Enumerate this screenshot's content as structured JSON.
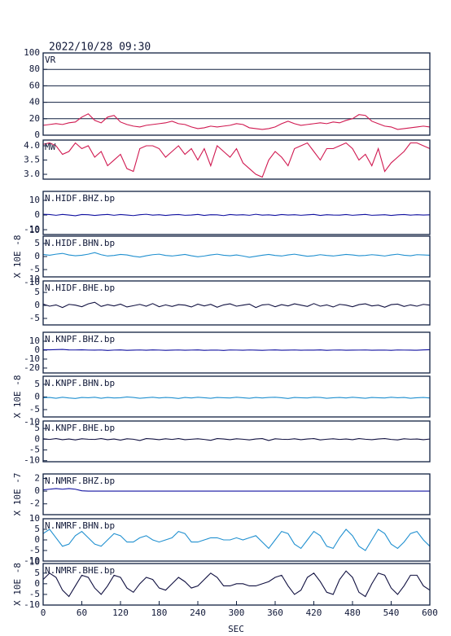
{
  "chart_data": {
    "type": "line",
    "title": "2022/10/28 09:30",
    "xlabel": "SEC",
    "xlim": [
      0,
      600
    ],
    "xticks": [
      0,
      60,
      120,
      180,
      240,
      300,
      360,
      420,
      480,
      540,
      600
    ],
    "x": [
      0,
      10,
      20,
      30,
      40,
      50,
      60,
      70,
      80,
      90,
      100,
      110,
      120,
      130,
      140,
      150,
      160,
      170,
      180,
      190,
      200,
      210,
      220,
      230,
      240,
      250,
      260,
      270,
      280,
      290,
      300,
      310,
      320,
      330,
      340,
      350,
      360,
      370,
      380,
      390,
      400,
      410,
      420,
      430,
      440,
      450,
      460,
      470,
      480,
      490,
      500,
      510,
      520,
      530,
      540,
      550,
      560,
      570,
      580,
      590,
      600
    ],
    "series": [
      {
        "name": "VR",
        "color": "#d01850",
        "grid": true,
        "ylim": [
          0,
          100
        ],
        "yticks": [
          0,
          20,
          40,
          60,
          80,
          100
        ],
        "values": [
          12,
          13,
          14,
          13,
          15,
          16,
          22,
          26,
          18,
          15,
          22,
          24,
          16,
          13,
          11,
          10,
          12,
          13,
          14,
          15,
          17,
          14,
          13,
          10,
          8,
          9,
          11,
          10,
          11,
          12,
          14,
          13,
          9,
          8,
          7,
          8,
          10,
          14,
          17,
          14,
          12,
          13,
          14,
          15,
          14,
          16,
          15,
          18,
          20,
          25,
          24,
          17,
          14,
          11,
          10,
          7,
          8,
          9,
          10,
          11,
          10
        ]
      },
      {
        "name": "MW",
        "color": "#d01850",
        "ylim": [
          2.83,
          4.2
        ],
        "yticks": [
          {
            "value": 3,
            "label": "3.0"
          },
          3.5,
          {
            "value": 4,
            "label": "4.0"
          }
        ],
        "values": [
          4.05,
          4.1,
          4.0,
          3.7,
          3.8,
          4.1,
          3.9,
          4.0,
          3.6,
          3.8,
          3.3,
          3.5,
          3.7,
          3.2,
          3.1,
          3.9,
          4.0,
          4.0,
          3.9,
          3.6,
          3.8,
          4.0,
          3.7,
          3.9,
          3.5,
          3.9,
          3.3,
          4.0,
          3.8,
          3.6,
          3.9,
          3.4,
          3.2,
          3.0,
          2.9,
          3.5,
          3.8,
          3.6,
          3.3,
          3.9,
          4.0,
          4.1,
          3.8,
          3.5,
          3.9,
          3.9,
          4.0,
          4.1,
          3.9,
          3.5,
          3.7,
          3.3,
          3.9,
          3.1,
          3.4,
          3.6,
          3.8,
          4.1,
          4.1,
          4.0,
          3.9
        ]
      },
      {
        "name": "N.HIDF.BHZ.bp",
        "color": "#1010a0",
        "ylim": [
          -13.3,
          16.1
        ],
        "yticks": [
          -10,
          0,
          10
        ],
        "values": [
          0.5,
          0.3,
          -0.2,
          0.4,
          0,
          -0.5,
          0.3,
          0.2,
          -0.3,
          0.1,
          0.4,
          -0.2,
          0.3,
          0,
          -0.4,
          0.2,
          0.5,
          -0.1,
          0.2,
          -0.3,
          0.1,
          0.3,
          -0.2,
          0,
          0.4,
          -0.3,
          0.2,
          0.1,
          -0.4,
          0.3,
          0,
          0.2,
          -0.2,
          0.5,
          -0.1,
          0.1,
          -0.3,
          0.3,
          0,
          0.2,
          -0.2,
          0.1,
          0.4,
          -0.3,
          0.2,
          0,
          -0.1,
          0.3,
          -0.2,
          0.1,
          0.4,
          -0.2,
          0,
          0.2,
          -0.3,
          0.1,
          0.3,
          -0.1,
          0.2,
          0,
          0.1
        ]
      },
      {
        "name": "N.HIDF.BHN.bp",
        "color": "#2090d0",
        "ylabel": "X 10E -8",
        "ylim": [
          -7.8,
          7.8
        ],
        "yticks": [
          -10,
          -5,
          0,
          5,
          10
        ],
        "values": [
          0.8,
          0.5,
          0.9,
          1.2,
          0.6,
          0.3,
          0.5,
          0.9,
          1.5,
          0.7,
          0.2,
          0.4,
          0.8,
          0.6,
          0.1,
          -0.2,
          0.3,
          0.7,
          0.9,
          0.4,
          0.2,
          0.5,
          0.8,
          0.3,
          -0.1,
          0.2,
          0.6,
          0.9,
          0.5,
          0.3,
          0.6,
          0.2,
          -0.3,
          0.1,
          0.5,
          0.8,
          0.4,
          0.2,
          0.6,
          0.9,
          0.5,
          0.1,
          0.3,
          0.7,
          0.4,
          0.2,
          0.5,
          0.8,
          0.6,
          0.3,
          0.4,
          0.7,
          0.5,
          0.2,
          0.6,
          0.9,
          0.5,
          0.3,
          0.7,
          0.6,
          0.5
        ]
      },
      {
        "name": "N.HIDF.BHE.bp",
        "color": "#101040",
        "ylim": [
          -7.5,
          9.4
        ],
        "yticks": [
          -5,
          0,
          5,
          10
        ],
        "values": [
          0.5,
          -0.3,
          0.2,
          -0.8,
          0.4,
          0.1,
          -0.5,
          0.6,
          1.2,
          -0.4,
          0.3,
          -0.2,
          0.5,
          -0.6,
          -0.1,
          0.4,
          -0.3,
          0.7,
          -0.5,
          0.2,
          -0.4,
          0.3,
          0.1,
          -0.6,
          0.5,
          -0.2,
          0.4,
          -0.7,
          0.2,
          0.6,
          -0.3,
          0.1,
          0.5,
          -0.8,
          0.2,
          0.4,
          -0.5,
          0.3,
          -0.2,
          0.6,
          0.1,
          -0.4,
          0.7,
          -0.3,
          0.2,
          -0.6,
          0.4,
          0.1,
          -0.5,
          0.3,
          0.6,
          -0.2,
          0.1,
          -0.7,
          0.3,
          0.5,
          -0.4,
          0.2,
          -0.3,
          0.4,
          0.1
        ]
      },
      {
        "name": "N.KNPF.BHZ.bp",
        "color": "#1010a0",
        "ylim": [
          -25.5,
          20
        ],
        "yticks": [
          -20,
          -10,
          0,
          10
        ],
        "values": [
          0.5,
          0.4,
          0.6,
          0.8,
          0.3,
          0.2,
          0.4,
          0.1,
          0,
          0.2,
          -0.3,
          0.1,
          0.3,
          -0.2,
          0,
          0.2,
          -0.1,
          0.3,
          0.1,
          -0.2,
          0,
          0.2,
          -0.1,
          0.1,
          0.3,
          -0.2,
          0,
          0.1,
          -0.3,
          0.2,
          0.1,
          -0.1,
          0.2,
          0,
          -0.2,
          0.1,
          0.3,
          -0.1,
          0,
          0.2,
          -0.1,
          0.1,
          0,
          0.3,
          -0.2,
          0.1,
          0.2,
          -0.1,
          0,
          0.1,
          0.2,
          -0.1,
          0,
          0.1,
          -0.2,
          0.2,
          0.1,
          0,
          -0.1,
          0.3,
          0.5
        ]
      },
      {
        "name": "N.KNPF.BHN.bp",
        "color": "#2090d0",
        "ylabel": "X 10E -8",
        "ylim": [
          -7.9,
          8.2
        ],
        "yticks": [
          -10,
          -5,
          0,
          5
        ],
        "values": [
          -0.3,
          -0.2,
          -0.5,
          -0.1,
          -0.4,
          -0.6,
          -0.2,
          -0.3,
          -0.1,
          -0.5,
          -0.2,
          -0.4,
          -0.3,
          0,
          -0.2,
          -0.5,
          -0.3,
          -0.1,
          -0.4,
          -0.2,
          -0.3,
          -0.6,
          -0.2,
          -0.4,
          -0.1,
          -0.3,
          -0.5,
          -0.2,
          -0.3,
          -0.4,
          -0.1,
          -0.3,
          -0.5,
          -0.2,
          -0.4,
          -0.2,
          -0.1,
          -0.3,
          -0.6,
          -0.2,
          -0.3,
          -0.4,
          -0.1,
          -0.2,
          -0.5,
          -0.3,
          -0.2,
          -0.4,
          -0.1,
          -0.3,
          -0.5,
          -0.2,
          -0.3,
          -0.4,
          -0.1,
          -0.3,
          -0.2,
          -0.5,
          -0.3,
          -0.2,
          -0.4
        ]
      },
      {
        "name": "N.KNPF.BHE.bp",
        "color": "#101040",
        "ylim": [
          -10.5,
          8.5
        ],
        "yticks": [
          -10,
          -5,
          0,
          5
        ],
        "values": [
          0.2,
          -0.1,
          0.3,
          -0.2,
          0.1,
          -0.3,
          0.2,
          0,
          -0.1,
          0.3,
          -0.2,
          0.1,
          -0.4,
          0.2,
          0,
          -0.6,
          0.3,
          0.1,
          -0.2,
          0.2,
          -0.1,
          0.3,
          -0.2,
          0,
          0.2,
          -0.1,
          -0.5,
          0.3,
          0.1,
          -0.2,
          0.2,
          0,
          -0.3,
          0.1,
          0.3,
          -0.6,
          0.2,
          0,
          -0.1,
          0.2,
          -0.2,
          0.1,
          0.3,
          -0.3,
          0,
          0.2,
          -0.1,
          0.1,
          -0.2,
          0.3,
          0,
          -0.2,
          0.1,
          0.3,
          -0.1,
          -0.3,
          0.2,
          0,
          0.1,
          -0.2,
          0.1
        ]
      },
      {
        "name": "N.NMRF.BHZ.bp",
        "color": "#1010a0",
        "ylabel": "X 10E -7",
        "ylim": [
          -3.7,
          2.7
        ],
        "yticks": [
          -2,
          0,
          2
        ],
        "values": [
          0.2,
          0.3,
          0.4,
          0.3,
          0.4,
          0.3,
          0.05,
          0,
          0,
          0,
          0,
          0,
          0,
          0,
          0,
          0,
          0,
          0,
          0,
          0,
          0,
          0,
          0,
          0,
          0,
          0,
          0,
          0,
          0,
          0,
          0,
          0,
          0,
          0,
          0,
          0,
          0,
          0,
          0,
          0,
          0,
          0,
          0,
          0,
          0,
          0,
          0,
          0,
          0,
          0,
          0,
          0,
          0,
          0,
          0,
          0,
          0,
          0,
          0,
          0,
          0
        ]
      },
      {
        "name": "N.NMRF.BHN.bp",
        "color": "#2090d0",
        "ylim": [
          -10,
          10
        ],
        "yticks": [
          -10,
          -5,
          0,
          5,
          10
        ],
        "values": [
          3,
          5,
          1,
          -3,
          -2,
          2,
          4,
          1,
          -2,
          -3,
          0,
          3,
          2,
          -1,
          -1,
          1,
          2,
          0,
          -1,
          0,
          1,
          4,
          3,
          -1,
          -1,
          0,
          1,
          1,
          0,
          0,
          1,
          0,
          1,
          2,
          -1,
          -4,
          0,
          4,
          3,
          -2,
          -4,
          0,
          4,
          2,
          -3,
          -4,
          1,
          5,
          2,
          -3,
          -5,
          0,
          5,
          3,
          -2,
          -4,
          -1,
          3,
          4,
          0,
          -3
        ]
      },
      {
        "name": "N.NMRF.BHE.bp",
        "color": "#101040",
        "ylabel": "X 10E -8",
        "ylim": [
          -10,
          9.5
        ],
        "yticks": [
          -10,
          -5,
          0,
          5,
          10
        ],
        "values": [
          2,
          5,
          3,
          -3,
          -6,
          -1,
          4,
          3,
          -2,
          -5,
          -1,
          4,
          3,
          -2,
          -4,
          0,
          3,
          2,
          -2,
          -3,
          0,
          3,
          1,
          -2,
          -1,
          2,
          5,
          3,
          -1,
          -1,
          0,
          0,
          -1,
          -1,
          0,
          1,
          3,
          4,
          -1,
          -5,
          -3,
          3,
          5,
          1,
          -4,
          -5,
          2,
          6,
          3,
          -4,
          -6,
          0,
          5,
          4,
          -2,
          -5,
          -1,
          4,
          4,
          -1,
          -3
        ]
      }
    ]
  }
}
